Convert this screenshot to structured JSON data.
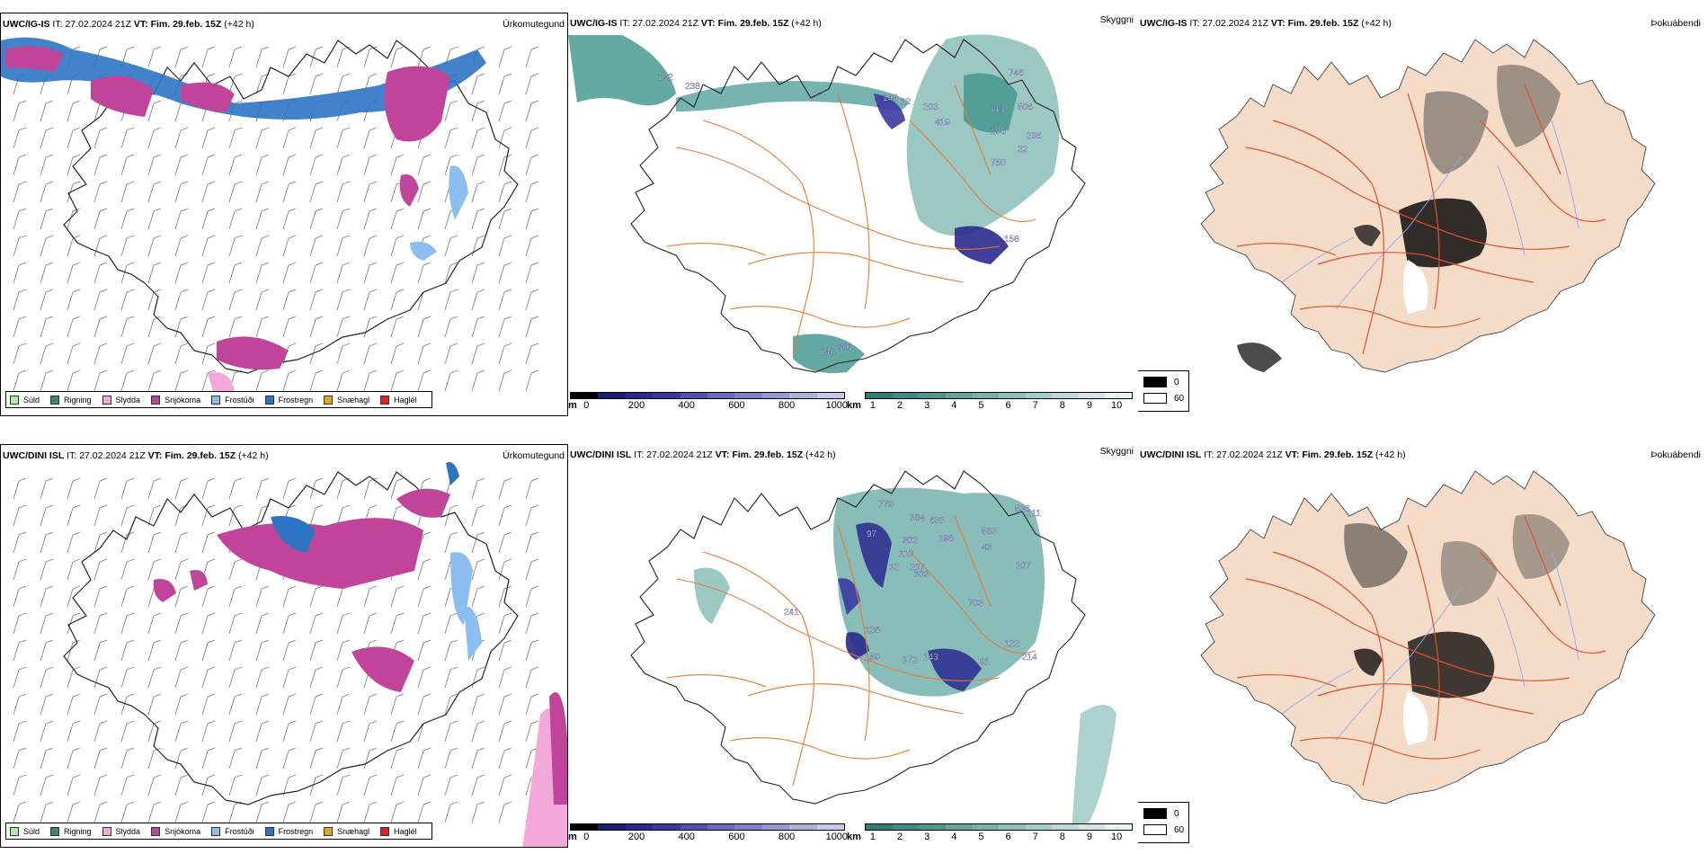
{
  "rows": [
    {
      "model": "UWC/IG-IS",
      "it_label": "IT:",
      "it_value": "27.02.2024 21Z",
      "vt_label": "VT: Fim. 29.feb. 15Z",
      "lead": "(+42 h)",
      "panel_titles": {
        "type": "Úrkomutegund",
        "vis": "Skyggni",
        "fog": "Þokuábendi"
      },
      "vis_values": [
        "292",
        "238",
        "145",
        "12",
        "203",
        "419",
        "113",
        "506",
        "746",
        "196",
        "750",
        "22",
        "236",
        "158",
        "148",
        "301"
      ]
    },
    {
      "model": "UWC/DINI ISL",
      "it_label": "IT:",
      "it_value": "27.02.2024 21Z",
      "vt_label": "VT: Fim. 29.feb. 15Z",
      "lead": "(+42 h)",
      "panel_titles": {
        "type": "Úrkomutegund",
        "vis": "Skyggni",
        "fog": "Þokuábendi"
      },
      "vis_values": [
        "779",
        "384",
        "97",
        "302",
        "110",
        "32",
        "303",
        "633",
        "198",
        "583",
        "43",
        "536",
        "107",
        "703",
        "128",
        "159",
        "172",
        "143",
        "91",
        "122",
        "214",
        "211",
        "207",
        "241"
      ]
    }
  ],
  "precip_legend": [
    {
      "label": "Súld",
      "color": "#a6f0a6"
    },
    {
      "label": "Rigning",
      "color": "#3a8a5a"
    },
    {
      "label": "Slydda",
      "color": "#f2a8d8"
    },
    {
      "label": "Snjókoma",
      "color": "#c0449a"
    },
    {
      "label": "Frostúði",
      "color": "#8dbef0"
    },
    {
      "label": "Frostregn",
      "color": "#2e74c4"
    },
    {
      "label": "Snæhagl",
      "color": "#f0a020"
    },
    {
      "label": "Haglél",
      "color": "#e02020"
    }
  ],
  "colorbar_m": {
    "unit": "m",
    "ticks": [
      "0",
      "200",
      "400",
      "600",
      "800",
      "1000"
    ],
    "colors": [
      "#000000",
      "#1a1a6e",
      "#2a2a8e",
      "#3a3aa0",
      "#5050b0",
      "#6868bc",
      "#8080c8",
      "#9898d4",
      "#b0b0e0",
      "#c8c8ec"
    ]
  },
  "colorbar_km": {
    "unit": "km",
    "ticks": [
      "1",
      "2",
      "3",
      "4",
      "5",
      "6",
      "7",
      "8",
      "9",
      "10"
    ],
    "colors": [
      "#2e7d7a",
      "#3d8a86",
      "#4f9793",
      "#63a4a0",
      "#78b2ae",
      "#8ebfbc",
      "#a5ccca",
      "#bcd9d8",
      "#d3e6e5",
      "#eaf3f2"
    ]
  },
  "fog_legend": [
    {
      "label": "0",
      "color": "#000000"
    },
    {
      "label": "60",
      "color": "#ffffff"
    }
  ],
  "colors": {
    "land_fog": "#f5dcc8",
    "road": "#e87a30",
    "road_fog": "#e05030",
    "river": "#8fa8f0",
    "teal": "#4a9a94",
    "blue": "#2e74c4",
    "magenta": "#c0449a"
  }
}
